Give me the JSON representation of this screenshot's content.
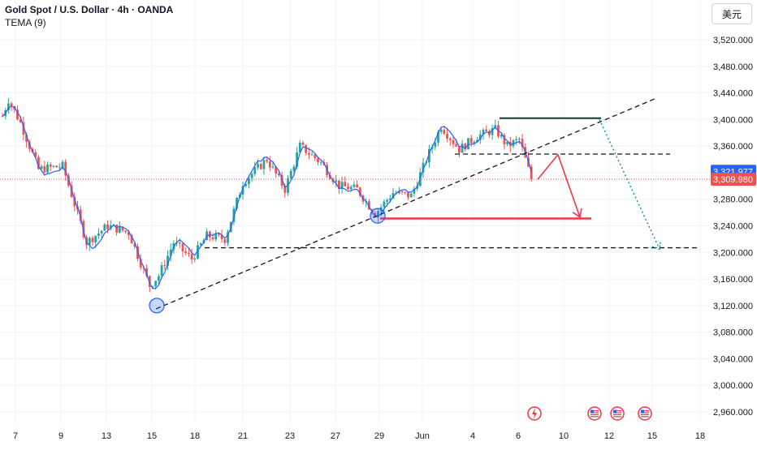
{
  "header": {
    "title": "Gold Spot / U.S. Dollar · 4h · OANDA",
    "indicator": "TEMA (9)"
  },
  "currency_button": "美元",
  "colors": {
    "up": "#26a69a",
    "down": "#ef5350",
    "tema": "#2962ff",
    "price_line": "#ef5350",
    "tema_label_bg": "#2962ff",
    "price_label_bg": "#ef5350",
    "arrow_red": "#f23645",
    "arrow_teal": "#089981",
    "grid": "#f0f3fa",
    "axis_text": "#131722"
  },
  "chart_data": {
    "type": "candlestick",
    "symbol": "XAUUSD",
    "timeframe": "4h",
    "ylim": [
      2940,
      3560
    ],
    "y_ticks": [
      2960,
      3000,
      3040,
      3080,
      3120,
      3160,
      3200,
      3240,
      3280,
      3320,
      3360,
      3400,
      3440,
      3480,
      3520
    ],
    "y_tick_labels": [
      "2,960.000",
      "3,000.000",
      "3,040.000",
      "3,080.000",
      "3,120.000",
      "3,160.000",
      "3,200.000",
      "3,240.000",
      "3,280.000",
      "3,320.000",
      "3,360.000",
      "3,400.000",
      "3,440.000",
      "3,480.000",
      "3,520.000"
    ],
    "x_ticks": [
      "7",
      "9",
      "13",
      "15",
      "18",
      "21",
      "23",
      "27",
      "29",
      "Jun",
      "4",
      "6",
      "10",
      "12",
      "15",
      "18"
    ],
    "current_price": 3309.98,
    "tema_value": 3321.977,
    "current_price_label": "3,309.980",
    "tema_label": "3,321.977",
    "anchors": [
      {
        "bar": 0,
        "price": 3405
      },
      {
        "bar": 2,
        "price": 3430
      },
      {
        "bar": 6,
        "price": 3395
      },
      {
        "bar": 12,
        "price": 3325
      },
      {
        "bar": 20,
        "price": 3330
      },
      {
        "bar": 28,
        "price": 3215
      },
      {
        "bar": 35,
        "price": 3240
      },
      {
        "bar": 42,
        "price": 3230
      },
      {
        "bar": 49,
        "price": 3150
      },
      {
        "bar": 52,
        "price": 3165
      },
      {
        "bar": 57,
        "price": 3215
      },
      {
        "bar": 63,
        "price": 3190
      },
      {
        "bar": 68,
        "price": 3225
      },
      {
        "bar": 74,
        "price": 3220
      },
      {
        "bar": 80,
        "price": 3305
      },
      {
        "bar": 88,
        "price": 3340
      },
      {
        "bar": 94,
        "price": 3295
      },
      {
        "bar": 99,
        "price": 3360
      },
      {
        "bar": 106,
        "price": 3335
      },
      {
        "bar": 112,
        "price": 3300
      },
      {
        "bar": 118,
        "price": 3295
      },
      {
        "bar": 124,
        "price": 3258
      },
      {
        "bar": 130,
        "price": 3290
      },
      {
        "bar": 136,
        "price": 3285
      },
      {
        "bar": 142,
        "price": 3350
      },
      {
        "bar": 146,
        "price": 3390
      },
      {
        "bar": 152,
        "price": 3355
      },
      {
        "bar": 158,
        "price": 3375
      },
      {
        "bar": 164,
        "price": 3385
      },
      {
        "bar": 168,
        "price": 3360
      },
      {
        "bar": 172,
        "price": 3370
      },
      {
        "bar": 176,
        "price": 3310
      }
    ],
    "annotations": [
      {
        "kind": "trendline",
        "style": "dashed",
        "from": {
          "x": "15",
          "price": 3115
        },
        "to": {
          "x": "12",
          "price": 3432
        }
      },
      {
        "kind": "horizontal",
        "style": "dashed",
        "price": 3207,
        "from_x": "18",
        "to_x": "18+"
      },
      {
        "kind": "horizontal",
        "style": "dashed",
        "price": 3348,
        "from_x": "4",
        "to_x": "15+"
      },
      {
        "kind": "horizontal",
        "style": "solid",
        "price": 3402,
        "from_x": "5",
        "to_x": "12"
      },
      {
        "kind": "horizontal",
        "style": "solid-red",
        "price": 3251,
        "from_x": "29",
        "to_x": "12"
      },
      {
        "kind": "circle",
        "x": "15",
        "price": 3120
      },
      {
        "kind": "circle",
        "x": "29",
        "price": 3255
      },
      {
        "kind": "arrow",
        "color": "red",
        "path": [
          [
            3309,
            "6"
          ],
          [
            3347,
            "10"
          ],
          [
            3251,
            "12"
          ]
        ]
      },
      {
        "kind": "arrow",
        "color": "teal",
        "style": "dotted",
        "from": {
          "x": "12",
          "price": 3400
        },
        "to": {
          "x": "15+",
          "price": 3205
        }
      }
    ],
    "event_icons": [
      {
        "x": "6",
        "icon": "lightning-icon"
      },
      {
        "x": "12",
        "icon": "us-flag-icon"
      },
      {
        "x": "12+",
        "icon": "us-flag-icon"
      },
      {
        "x": "15",
        "icon": "us-flag-icon"
      }
    ]
  }
}
